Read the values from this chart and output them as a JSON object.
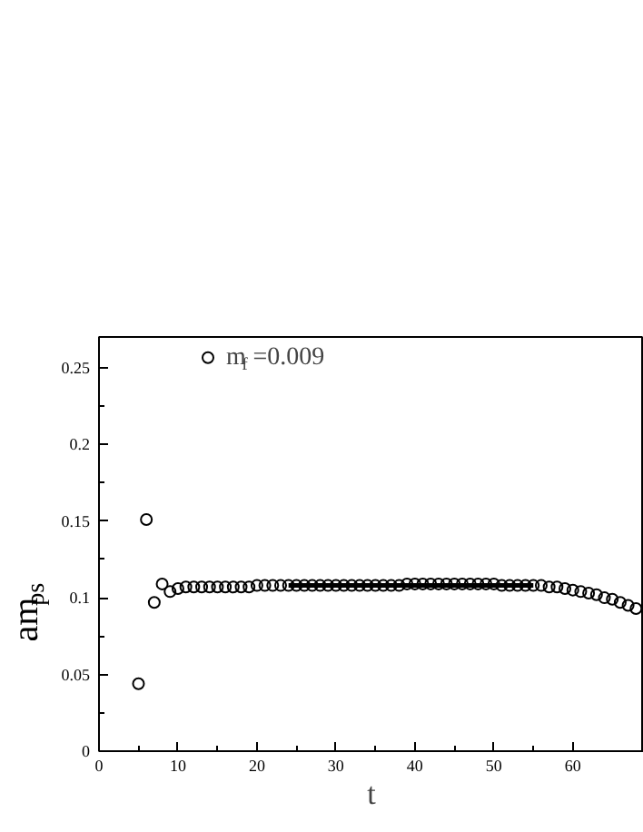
{
  "chart_data": {
    "type": "scatter",
    "xlabel": "t",
    "ylabel": "am$_{ps}$",
    "xlim": [
      0,
      69
    ],
    "ylim": [
      0,
      0.27
    ],
    "xticks": [
      0,
      10,
      20,
      30,
      40,
      50,
      60
    ],
    "yticks": [
      0,
      0.05,
      0.1,
      0.15,
      0.2,
      0.25
    ],
    "grid": false,
    "legend": "top left",
    "series": [
      {
        "name": "m$_{f}$=0.009",
        "color": "#000000",
        "marker": "circle",
        "x": [
          5,
          6,
          7,
          8,
          9,
          10,
          11,
          12,
          13,
          14,
          15,
          16,
          17,
          18,
          19,
          20,
          21,
          22,
          23,
          24,
          25,
          26,
          27,
          28,
          29,
          30,
          31,
          32,
          33,
          34,
          35,
          36,
          37,
          38,
          39,
          40,
          41,
          42,
          43,
          44,
          45,
          46,
          47,
          48,
          49,
          50,
          51,
          52,
          53,
          54,
          55,
          56,
          57,
          58,
          59,
          60,
          61,
          62,
          63,
          64,
          65,
          66,
          67,
          68
        ],
        "values": [
          0.044,
          0.151,
          0.097,
          0.109,
          0.104,
          0.106,
          0.107,
          0.107,
          0.107,
          0.107,
          0.107,
          0.107,
          0.107,
          0.107,
          0.107,
          0.108,
          0.108,
          0.108,
          0.108,
          0.108,
          0.108,
          0.108,
          0.108,
          0.108,
          0.108,
          0.108,
          0.108,
          0.108,
          0.108,
          0.108,
          0.108,
          0.108,
          0.108,
          0.108,
          0.109,
          0.109,
          0.109,
          0.109,
          0.109,
          0.109,
          0.109,
          0.109,
          0.109,
          0.109,
          0.109,
          0.109,
          0.108,
          0.108,
          0.108,
          0.108,
          0.108,
          0.108,
          0.107,
          0.107,
          0.106,
          0.105,
          0.104,
          0.103,
          0.102,
          0.1,
          0.099,
          0.097,
          0.095,
          0.093
        ]
      },
      {
        "type": "line",
        "color": "#000000",
        "x": [
          24,
          55
        ],
        "values": [
          0.108,
          0.108
        ]
      }
    ]
  }
}
